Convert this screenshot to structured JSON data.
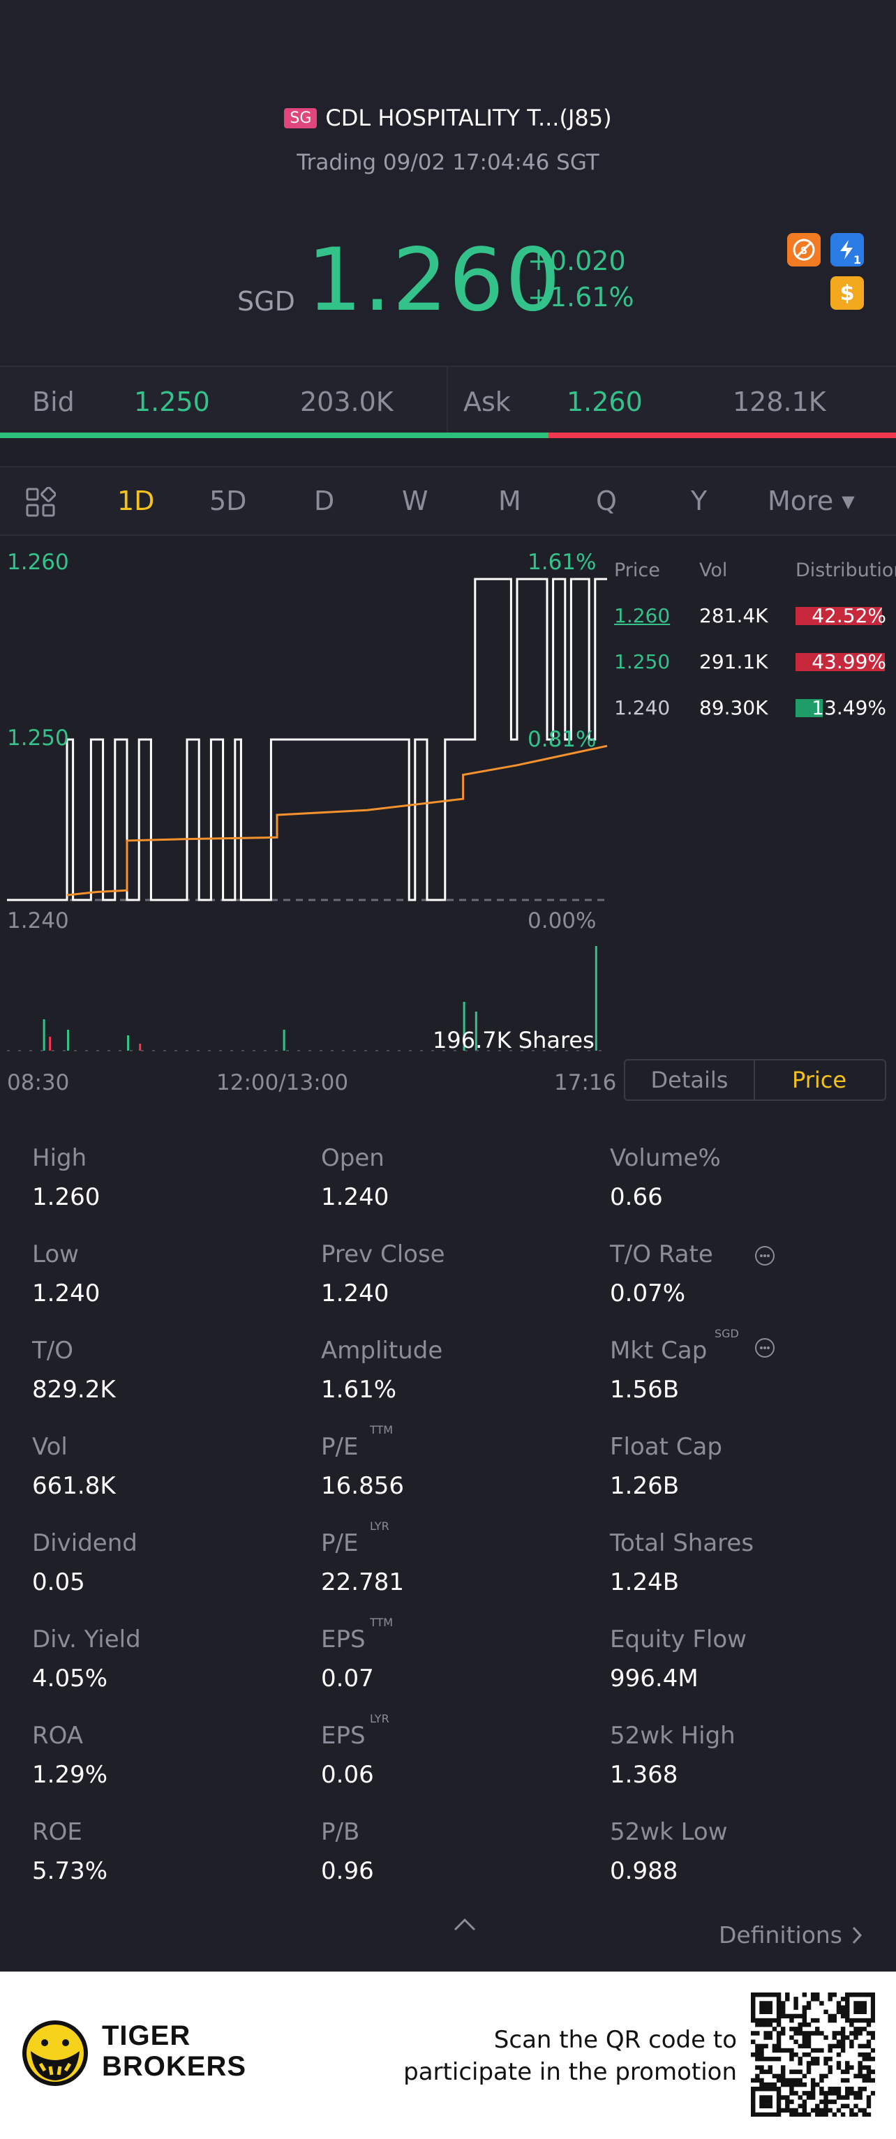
{
  "header": {
    "market_badge": "SG",
    "stock_name": "CDL HOSPITALITY T...(J85)",
    "status": "Trading 09/02 17:04:46 SGT",
    "currency": "SGD",
    "price": "1.260",
    "change_abs": "+0.020",
    "change_pct": "+1.61%",
    "icons": [
      "no-short-icon",
      "lightning-icon",
      "dollar-icon"
    ],
    "lightning_badge": "1",
    "colors": {
      "up": "#33c38a",
      "down": "#f0384f",
      "accent": "#f4c21a"
    }
  },
  "bid_ask": {
    "bid_label": "Bid",
    "bid_price": "1.250",
    "bid_size": "203.0K",
    "ask_label": "Ask",
    "ask_price": "1.260",
    "ask_size": "128.1K",
    "bid_ratio": 0.612
  },
  "tabs": {
    "items": [
      "1D",
      "5D",
      "D",
      "W",
      "M",
      "Q",
      "Y",
      "More"
    ],
    "active": "1D"
  },
  "chart": {
    "y_top": "1.260",
    "y_mid": "1.250",
    "y_bottom": "1.240",
    "pct_top": "1.61%",
    "pct_mid": "0.81%",
    "pct_bottom": "0.00%",
    "volume_label": "196.7K Shares",
    "time_start": "08:30",
    "time_mid": "12:00/13:00",
    "time_end": "17:16"
  },
  "chart_data": {
    "type": "line",
    "title": "",
    "xlabel": "",
    "ylabel": "",
    "ylim": [
      1.24,
      1.26
    ],
    "x_ticks": [
      "08:30",
      "12:00/13:00",
      "17:16"
    ],
    "series": [
      {
        "name": "Price",
        "color": "#ffffff",
        "points": [
          [
            0,
            1.24
          ],
          [
            0.1,
            1.24
          ],
          [
            0.1,
            1.25
          ],
          [
            0.11,
            1.25
          ],
          [
            0.11,
            1.24
          ],
          [
            0.14,
            1.24
          ],
          [
            0.14,
            1.25
          ],
          [
            0.16,
            1.25
          ],
          [
            0.16,
            1.24
          ],
          [
            0.18,
            1.24
          ],
          [
            0.18,
            1.25
          ],
          [
            0.2,
            1.25
          ],
          [
            0.2,
            1.24
          ],
          [
            0.22,
            1.24
          ],
          [
            0.22,
            1.25
          ],
          [
            0.24,
            1.25
          ],
          [
            0.24,
            1.24
          ],
          [
            0.3,
            1.24
          ],
          [
            0.3,
            1.25
          ],
          [
            0.32,
            1.25
          ],
          [
            0.32,
            1.24
          ],
          [
            0.34,
            1.24
          ],
          [
            0.34,
            1.25
          ],
          [
            0.36,
            1.25
          ],
          [
            0.36,
            1.24
          ],
          [
            0.38,
            1.24
          ],
          [
            0.38,
            1.25
          ],
          [
            0.39,
            1.25
          ],
          [
            0.39,
            1.24
          ],
          [
            0.44,
            1.24
          ],
          [
            0.44,
            1.25
          ],
          [
            0.67,
            1.25
          ],
          [
            0.67,
            1.24
          ],
          [
            0.68,
            1.24
          ],
          [
            0.68,
            1.25
          ],
          [
            0.7,
            1.25
          ],
          [
            0.7,
            1.24
          ],
          [
            0.73,
            1.24
          ],
          [
            0.73,
            1.25
          ],
          [
            0.78,
            1.25
          ],
          [
            0.78,
            1.26
          ],
          [
            0.84,
            1.26
          ],
          [
            0.84,
            1.25
          ],
          [
            0.85,
            1.25
          ],
          [
            0.85,
            1.26
          ],
          [
            0.9,
            1.26
          ],
          [
            0.9,
            1.25
          ],
          [
            0.91,
            1.25
          ],
          [
            0.91,
            1.26
          ],
          [
            0.93,
            1.26
          ],
          [
            0.93,
            1.25
          ],
          [
            0.94,
            1.25
          ],
          [
            0.94,
            1.26
          ],
          [
            0.97,
            1.26
          ],
          [
            0.97,
            1.25
          ],
          [
            0.98,
            1.25
          ],
          [
            0.98,
            1.26
          ],
          [
            1.0,
            1.26
          ]
        ]
      },
      {
        "name": "Avg",
        "color": "#f5922e",
        "points": [
          [
            0.1,
            1.2403
          ],
          [
            0.15,
            1.2405
          ],
          [
            0.2,
            1.2406
          ],
          [
            0.2,
            1.2437
          ],
          [
            0.3,
            1.2438
          ],
          [
            0.45,
            1.2439
          ],
          [
            0.45,
            1.2453
          ],
          [
            0.6,
            1.2456
          ],
          [
            0.76,
            1.2463
          ],
          [
            0.76,
            1.2478
          ],
          [
            0.85,
            1.2484
          ],
          [
            0.95,
            1.2492
          ],
          [
            1.0,
            1.2496
          ]
        ]
      }
    ]
  },
  "distribution": {
    "headers": [
      "Price",
      "Vol",
      "Distribution"
    ],
    "rows": [
      {
        "price": "1.260",
        "vol": "281.4K",
        "pct": "42.52%",
        "fraction": 0.4252,
        "color": "#c8283c",
        "price_color": "#33c38a",
        "underline": true
      },
      {
        "price": "1.250",
        "vol": "291.1K",
        "pct": "43.99%",
        "fraction": 0.4399,
        "color": "#c8283c",
        "price_color": "#33c38a",
        "underline": false
      },
      {
        "price": "1.240",
        "vol": "89.30K",
        "pct": "13.49%",
        "fraction": 0.1349,
        "color": "#1f9d68",
        "price_color": "#c9c9d2",
        "underline": false
      }
    ]
  },
  "toggle": {
    "details": "Details",
    "price": "Price",
    "active": "Price"
  },
  "stats": [
    {
      "label": "High",
      "value": "1.260"
    },
    {
      "label": "Open",
      "value": "1.240"
    },
    {
      "label": "Volume%",
      "value": "0.66"
    },
    {
      "label": "Low",
      "value": "1.240"
    },
    {
      "label": "Prev Close",
      "value": "1.240"
    },
    {
      "label": "T/O Rate",
      "value": "0.07%"
    },
    {
      "label": "T/O",
      "value": "829.2K"
    },
    {
      "label": "Amplitude",
      "value": "1.61%"
    },
    {
      "label": "Mkt Cap",
      "value": "1.56B",
      "sup": "SGD"
    },
    {
      "label": "Vol",
      "value": "661.8K"
    },
    {
      "label": "P/E",
      "value": "16.856",
      "sup": "TTM"
    },
    {
      "label": "Float Cap",
      "value": "1.26B"
    },
    {
      "label": "Dividend",
      "value": "0.05"
    },
    {
      "label": "P/E",
      "value": "22.781",
      "sup": "LYR"
    },
    {
      "label": "Total Shares",
      "value": "1.24B"
    },
    {
      "label": "Div. Yield",
      "value": "4.05%"
    },
    {
      "label": "EPS",
      "value": "0.07",
      "sup": "TTM"
    },
    {
      "label": "Equity Flow",
      "value": "996.4M"
    },
    {
      "label": "ROA",
      "value": "1.29%"
    },
    {
      "label": "EPS",
      "value": "0.06",
      "sup": "LYR"
    },
    {
      "label": "52wk High",
      "value": "1.368"
    },
    {
      "label": "ROE",
      "value": "5.73%"
    },
    {
      "label": "P/B",
      "value": "0.96"
    },
    {
      "label": "52wk Low",
      "value": "0.988"
    }
  ],
  "definitions": "Definitions",
  "footer": {
    "brand_line1": "TIGER",
    "brand_line2": "BROKERS",
    "promo_line1": "Scan the QR code to",
    "promo_line2": "participate in the promotion"
  }
}
